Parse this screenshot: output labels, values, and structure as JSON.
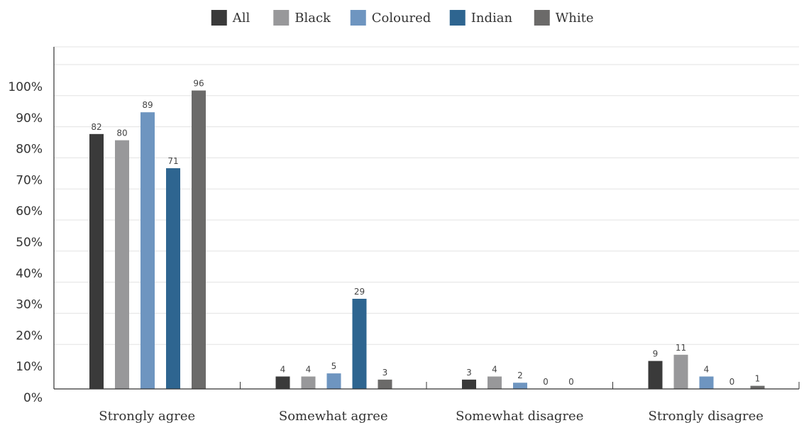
{
  "chart_data": {
    "type": "bar",
    "title": "",
    "xlabel": "",
    "ylabel": "",
    "categories": [
      "Strongly agree",
      "Somewhat agree",
      "Somewhat disagree",
      "Strongly disagree"
    ],
    "series": [
      {
        "name": "All",
        "color": "#3a3a3a",
        "values": [
          82,
          4,
          3,
          9
        ]
      },
      {
        "name": "Black",
        "color": "#98989a",
        "values": [
          80,
          4,
          4,
          11
        ]
      },
      {
        "name": "Coloured",
        "color": "#6e95c0",
        "values": [
          89,
          5,
          2,
          4
        ]
      },
      {
        "name": "Indian",
        "color": "#2e6590",
        "values": [
          71,
          29,
          0,
          0
        ]
      },
      {
        "name": "White",
        "color": "#6b6a69",
        "values": [
          96,
          3,
          0,
          1
        ]
      }
    ],
    "ylim": [
      0,
      100
    ],
    "yticks": [
      0,
      10,
      20,
      30,
      40,
      50,
      60,
      70,
      80,
      90,
      100
    ],
    "ytick_labels": [
      "0%",
      "10%",
      "20%",
      "30%",
      "40%",
      "50%",
      "60%",
      "70%",
      "80%",
      "90%",
      "100%"
    ],
    "grid": true,
    "legend_position": "top-center",
    "data_labels": true
  }
}
